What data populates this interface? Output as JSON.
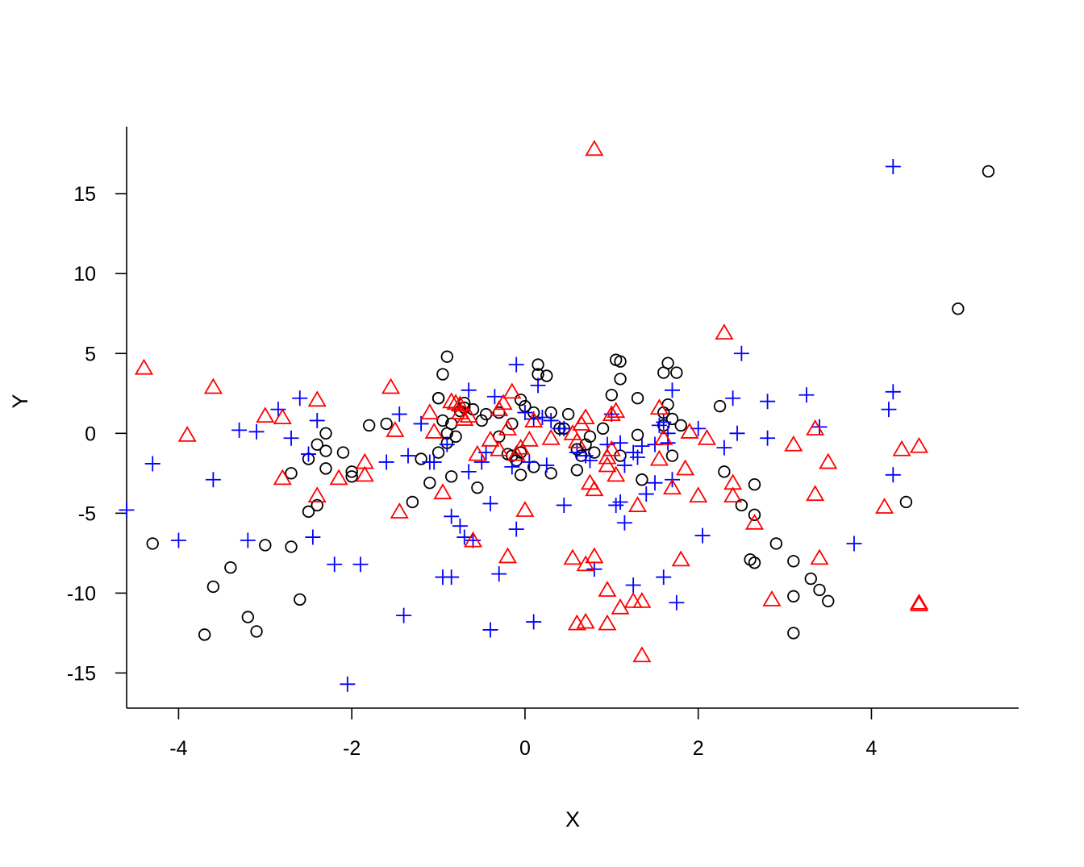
{
  "chart_data": {
    "type": "scatter",
    "xlabel": "X",
    "ylabel": "Y",
    "xlim": [
      -4.6,
      5.7
    ],
    "ylim": [
      -17.2,
      19.2
    ],
    "xticks": [
      -4,
      -2,
      0,
      2,
      4
    ],
    "yticks": [
      -15,
      -10,
      -5,
      0,
      5,
      10,
      15
    ],
    "grid": false,
    "legend": "none",
    "series": [
      {
        "marker": "circle",
        "color": "#000000",
        "points": [
          [
            -4.3,
            -6.9
          ],
          [
            -3.7,
            -12.6
          ],
          [
            -3.6,
            -9.6
          ],
          [
            -3.4,
            -8.4
          ],
          [
            -3.2,
            -11.5
          ],
          [
            -3.1,
            -12.4
          ],
          [
            -3.0,
            -7.0
          ],
          [
            -2.7,
            -7.1
          ],
          [
            -2.7,
            -2.5
          ],
          [
            -2.6,
            -10.4
          ],
          [
            -2.5,
            -4.9
          ],
          [
            -2.5,
            -1.6
          ],
          [
            -2.4,
            -4.5
          ],
          [
            -2.4,
            -0.7
          ],
          [
            -2.3,
            0.0
          ],
          [
            -2.3,
            -2.2
          ],
          [
            -2.3,
            -1.1
          ],
          [
            -2.1,
            -1.2
          ],
          [
            -2.0,
            -2.4
          ],
          [
            -2.0,
            -2.7
          ],
          [
            -1.8,
            0.5
          ],
          [
            -1.6,
            0.6
          ],
          [
            -1.3,
            -4.3
          ],
          [
            -1.2,
            -1.6
          ],
          [
            -1.1,
            -3.1
          ],
          [
            -1.0,
            2.2
          ],
          [
            -1.0,
            2.2
          ],
          [
            -1.0,
            -1.2
          ],
          [
            -0.95,
            3.7
          ],
          [
            -0.95,
            0.8
          ],
          [
            -0.9,
            4.8
          ],
          [
            -0.9,
            0.0
          ],
          [
            -0.9,
            -0.6
          ],
          [
            -0.85,
            0.6
          ],
          [
            -0.85,
            -2.7
          ],
          [
            -0.8,
            -0.2
          ],
          [
            -0.75,
            1.4
          ],
          [
            -0.7,
            1.9
          ],
          [
            -0.7,
            1.6
          ],
          [
            -0.6,
            1.5
          ],
          [
            -0.55,
            -3.4
          ],
          [
            -0.5,
            0.8
          ],
          [
            -0.45,
            1.2
          ],
          [
            -0.3,
            1.3
          ],
          [
            -0.3,
            -0.2
          ],
          [
            -0.2,
            -1.3
          ],
          [
            -0.15,
            -1.4
          ],
          [
            -0.15,
            0.6
          ],
          [
            -0.1,
            -1.7
          ],
          [
            -0.05,
            -1.2
          ],
          [
            -0.05,
            -2.6
          ],
          [
            -0.05,
            2.1
          ],
          [
            0.0,
            1.7
          ],
          [
            0.1,
            1.3
          ],
          [
            0.1,
            -2.1
          ],
          [
            0.15,
            4.3
          ],
          [
            0.15,
            3.7
          ],
          [
            0.25,
            3.6
          ],
          [
            0.3,
            1.3
          ],
          [
            0.3,
            -2.5
          ],
          [
            0.4,
            0.3
          ],
          [
            0.45,
            0.3
          ],
          [
            0.5,
            1.2
          ],
          [
            0.6,
            -1.0
          ],
          [
            0.6,
            -2.3
          ],
          [
            0.65,
            -1.4
          ],
          [
            0.7,
            -0.7
          ],
          [
            0.75,
            -0.2
          ],
          [
            0.8,
            -1.2
          ],
          [
            0.9,
            0.3
          ],
          [
            1.0,
            2.4
          ],
          [
            1.05,
            4.6
          ],
          [
            1.1,
            4.5
          ],
          [
            1.1,
            3.4
          ],
          [
            1.1,
            -1.4
          ],
          [
            1.3,
            2.2
          ],
          [
            1.3,
            -0.1
          ],
          [
            1.35,
            -2.9
          ],
          [
            1.6,
            3.8
          ],
          [
            1.6,
            1.3
          ],
          [
            1.6,
            0.5
          ],
          [
            1.65,
            4.4
          ],
          [
            1.65,
            1.8
          ],
          [
            1.7,
            -1.4
          ],
          [
            1.75,
            3.8
          ],
          [
            1.8,
            0.5
          ],
          [
            1.7,
            0.9
          ],
          [
            2.25,
            1.7
          ],
          [
            2.3,
            -2.4
          ],
          [
            2.5,
            -4.5
          ],
          [
            2.6,
            -7.9
          ],
          [
            2.65,
            -8.1
          ],
          [
            2.65,
            -5.1
          ],
          [
            2.65,
            -3.2
          ],
          [
            2.9,
            -6.9
          ],
          [
            3.1,
            -8.0
          ],
          [
            3.1,
            -10.2
          ],
          [
            3.1,
            -12.5
          ],
          [
            3.3,
            -9.1
          ],
          [
            3.4,
            -9.8
          ],
          [
            3.5,
            -10.5
          ],
          [
            4.4,
            -4.3
          ],
          [
            5.0,
            7.8
          ],
          [
            5.35,
            16.4
          ]
        ]
      },
      {
        "marker": "plus",
        "color": "#0000FF",
        "points": [
          [
            -4.6,
            -4.8
          ],
          [
            -4.3,
            -1.9
          ],
          [
            -4.0,
            -6.7
          ],
          [
            -3.6,
            -2.9
          ],
          [
            -3.3,
            0.2
          ],
          [
            -3.2,
            -6.7
          ],
          [
            -3.1,
            0.1
          ],
          [
            -2.85,
            1.5
          ],
          [
            -2.7,
            -0.3
          ],
          [
            -2.6,
            2.2
          ],
          [
            -2.5,
            -1.3
          ],
          [
            -2.45,
            -6.5
          ],
          [
            -2.4,
            0.8
          ],
          [
            -2.2,
            -8.2
          ],
          [
            -2.05,
            -15.7
          ],
          [
            -1.9,
            -8.2
          ],
          [
            -1.6,
            -1.8
          ],
          [
            -1.45,
            1.2
          ],
          [
            -1.4,
            -11.4
          ],
          [
            -1.35,
            -1.4
          ],
          [
            -1.2,
            0.6
          ],
          [
            -1.1,
            -1.8
          ],
          [
            -1.05,
            -1.8
          ],
          [
            -0.95,
            -9.0
          ],
          [
            -0.9,
            -0.7
          ],
          [
            -0.85,
            -5.2
          ],
          [
            -0.85,
            -9.0
          ],
          [
            -0.75,
            -5.8
          ],
          [
            -0.7,
            -6.5
          ],
          [
            -0.65,
            2.7
          ],
          [
            -0.65,
            -2.4
          ],
          [
            -0.6,
            -6.7
          ],
          [
            -0.5,
            -1.8
          ],
          [
            -0.45,
            -1.2
          ],
          [
            -0.4,
            -4.4
          ],
          [
            -0.4,
            -12.3
          ],
          [
            -0.35,
            2.3
          ],
          [
            -0.3,
            -8.8
          ],
          [
            -0.15,
            -2.1
          ],
          [
            -0.1,
            4.3
          ],
          [
            -0.1,
            -6.0
          ],
          [
            0.0,
            1.3
          ],
          [
            0.05,
            -1.8
          ],
          [
            0.1,
            0.9
          ],
          [
            0.1,
            -11.8
          ],
          [
            0.15,
            3.0
          ],
          [
            0.2,
            1.0
          ],
          [
            0.25,
            -2.0
          ],
          [
            0.3,
            0.8
          ],
          [
            0.4,
            0.3
          ],
          [
            0.45,
            0.3
          ],
          [
            0.45,
            -4.5
          ],
          [
            0.6,
            -1.2
          ],
          [
            0.7,
            -1.4
          ],
          [
            0.75,
            -1.7
          ],
          [
            0.8,
            -8.5
          ],
          [
            0.95,
            -0.7
          ],
          [
            1.0,
            1.2
          ],
          [
            1.05,
            -4.5
          ],
          [
            1.1,
            -4.3
          ],
          [
            1.1,
            -0.6
          ],
          [
            1.15,
            -5.6
          ],
          [
            1.15,
            -2.0
          ],
          [
            1.25,
            -1.2
          ],
          [
            1.25,
            -9.5
          ],
          [
            1.3,
            -1.5
          ],
          [
            1.35,
            -0.8
          ],
          [
            1.4,
            -3.8
          ],
          [
            1.5,
            -0.7
          ],
          [
            1.5,
            -3.1
          ],
          [
            1.55,
            0.5
          ],
          [
            1.6,
            -9.0
          ],
          [
            1.6,
            0.7
          ],
          [
            1.65,
            0.0
          ],
          [
            1.65,
            -0.6
          ],
          [
            1.7,
            2.7
          ],
          [
            1.7,
            -2.9
          ],
          [
            1.75,
            -10.6
          ],
          [
            2.0,
            0.3
          ],
          [
            2.05,
            -6.4
          ],
          [
            2.3,
            -0.9
          ],
          [
            2.4,
            2.2
          ],
          [
            2.45,
            0.0
          ],
          [
            2.5,
            5.0
          ],
          [
            2.8,
            2.0
          ],
          [
            2.8,
            -0.3
          ],
          [
            3.25,
            2.4
          ],
          [
            3.4,
            0.4
          ],
          [
            3.8,
            -6.9
          ],
          [
            4.2,
            1.5
          ],
          [
            4.25,
            2.6
          ],
          [
            4.25,
            -2.6
          ],
          [
            4.25,
            16.7
          ]
        ]
      },
      {
        "marker": "triangle",
        "color": "#FF0000",
        "points": [
          [
            -4.4,
            4.1
          ],
          [
            -3.9,
            -0.1
          ],
          [
            -3.6,
            2.9
          ],
          [
            -3.0,
            1.1
          ],
          [
            -2.8,
            1.0
          ],
          [
            -2.8,
            -2.8
          ],
          [
            -2.4,
            2.1
          ],
          [
            -2.4,
            -3.9
          ],
          [
            -2.15,
            -2.8
          ],
          [
            -1.85,
            -2.6
          ],
          [
            -1.85,
            -1.8
          ],
          [
            -1.55,
            2.9
          ],
          [
            -1.5,
            0.2
          ],
          [
            -1.45,
            -4.9
          ],
          [
            -1.1,
            1.3
          ],
          [
            -1.05,
            0.1
          ],
          [
            -0.95,
            -3.7
          ],
          [
            -0.85,
            2.0
          ],
          [
            -0.8,
            1.9
          ],
          [
            -0.75,
            1.8
          ],
          [
            -0.75,
            1.3
          ],
          [
            -0.7,
            0.9
          ],
          [
            -0.65,
            1.1
          ],
          [
            -0.6,
            -6.7
          ],
          [
            -0.55,
            -1.3
          ],
          [
            -0.4,
            -0.4
          ],
          [
            -0.3,
            -1.0
          ],
          [
            -0.3,
            1.5
          ],
          [
            -0.25,
            1.9
          ],
          [
            -0.2,
            0.3
          ],
          [
            -0.2,
            -7.7
          ],
          [
            -0.15,
            2.6
          ],
          [
            -0.1,
            -1.3
          ],
          [
            -0.05,
            -0.9
          ],
          [
            0.0,
            -4.8
          ],
          [
            0.05,
            -0.4
          ],
          [
            0.1,
            0.8
          ],
          [
            0.3,
            -0.3
          ],
          [
            0.55,
            -7.8
          ],
          [
            0.55,
            0.0
          ],
          [
            0.6,
            -11.9
          ],
          [
            0.6,
            -0.5
          ],
          [
            0.65,
            0.6
          ],
          [
            0.7,
            1.0
          ],
          [
            0.7,
            -8.2
          ],
          [
            0.7,
            -11.8
          ],
          [
            0.75,
            -3.1
          ],
          [
            0.8,
            -3.5
          ],
          [
            0.8,
            -7.7
          ],
          [
            0.8,
            17.8
          ],
          [
            0.95,
            -9.8
          ],
          [
            0.95,
            -11.9
          ],
          [
            0.95,
            -2.0
          ],
          [
            0.95,
            -1.5
          ],
          [
            1.0,
            1.2
          ],
          [
            1.0,
            -1.0
          ],
          [
            1.05,
            1.4
          ],
          [
            1.05,
            -2.6
          ],
          [
            1.1,
            -10.9
          ],
          [
            1.25,
            -10.5
          ],
          [
            1.3,
            -4.5
          ],
          [
            1.35,
            -10.5
          ],
          [
            1.35,
            -13.9
          ],
          [
            1.55,
            1.6
          ],
          [
            1.55,
            -1.6
          ],
          [
            1.6,
            -0.3
          ],
          [
            1.7,
            -3.4
          ],
          [
            1.8,
            -7.9
          ],
          [
            1.85,
            -2.2
          ],
          [
            1.9,
            0.1
          ],
          [
            2.0,
            -3.9
          ],
          [
            2.1,
            -0.3
          ],
          [
            2.3,
            6.3
          ],
          [
            2.4,
            -3.1
          ],
          [
            2.4,
            -3.9
          ],
          [
            2.65,
            -5.6
          ],
          [
            2.85,
            -10.4
          ],
          [
            3.1,
            -0.7
          ],
          [
            3.35,
            0.3
          ],
          [
            3.35,
            -3.8
          ],
          [
            3.4,
            -7.8
          ],
          [
            3.5,
            -1.8
          ],
          [
            4.15,
            -4.6
          ],
          [
            4.35,
            -1.0
          ],
          [
            4.55,
            -0.8
          ],
          [
            4.55,
            -10.6
          ],
          [
            4.55,
            -10.7
          ]
        ]
      }
    ]
  }
}
